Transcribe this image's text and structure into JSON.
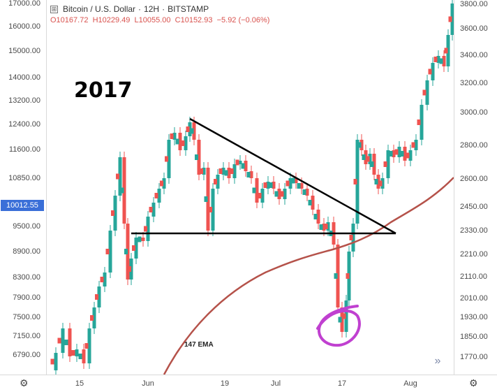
{
  "legend": {
    "symbol": "Bitcoin / U.S. Dollar",
    "interval": "12H",
    "exchange": "BITSTAMP",
    "separator": "·",
    "collapse_glyph": "⊞",
    "open": "O10167.72",
    "high": "H10229.49",
    "low": "L10055.00",
    "close": "C10152.93",
    "change": "−5.92 (−0.06%)"
  },
  "annotations": {
    "year": "2017",
    "ema": "147 EMA"
  },
  "price_tag": "10012.55",
  "left_axis": [
    "17000.00",
    "16000.00",
    "15000.00",
    "14000.00",
    "13200.00",
    "12400.00",
    "11600.00",
    "10850.00",
    "9500.00",
    "8900.00",
    "8300.00",
    "7900.00",
    "7500.00",
    "7150.00",
    "6790.00"
  ],
  "right_axis": [
    "3800.00",
    "3600.00",
    "3400.00",
    "3200.00",
    "3000.00",
    "2800.00",
    "2600.00",
    "2450.00",
    "2330.00",
    "2210.00",
    "2110.00",
    "2010.00",
    "1930.00",
    "1850.00",
    "1770.00"
  ],
  "bottom_axis": [
    "15",
    "Jun",
    "19",
    "Jul",
    "17",
    "Aug"
  ],
  "icons": {
    "settings_left": "gear-icon",
    "settings_right": "gear-icon",
    "scroll": "double-chevron-right-icon"
  },
  "colors": {
    "up": "#26a69a",
    "down": "#ef5350",
    "ema": "#b5524a",
    "trendline": "#000000",
    "circle": "#c040d0",
    "price_tag": "#3a6fd8"
  }
}
